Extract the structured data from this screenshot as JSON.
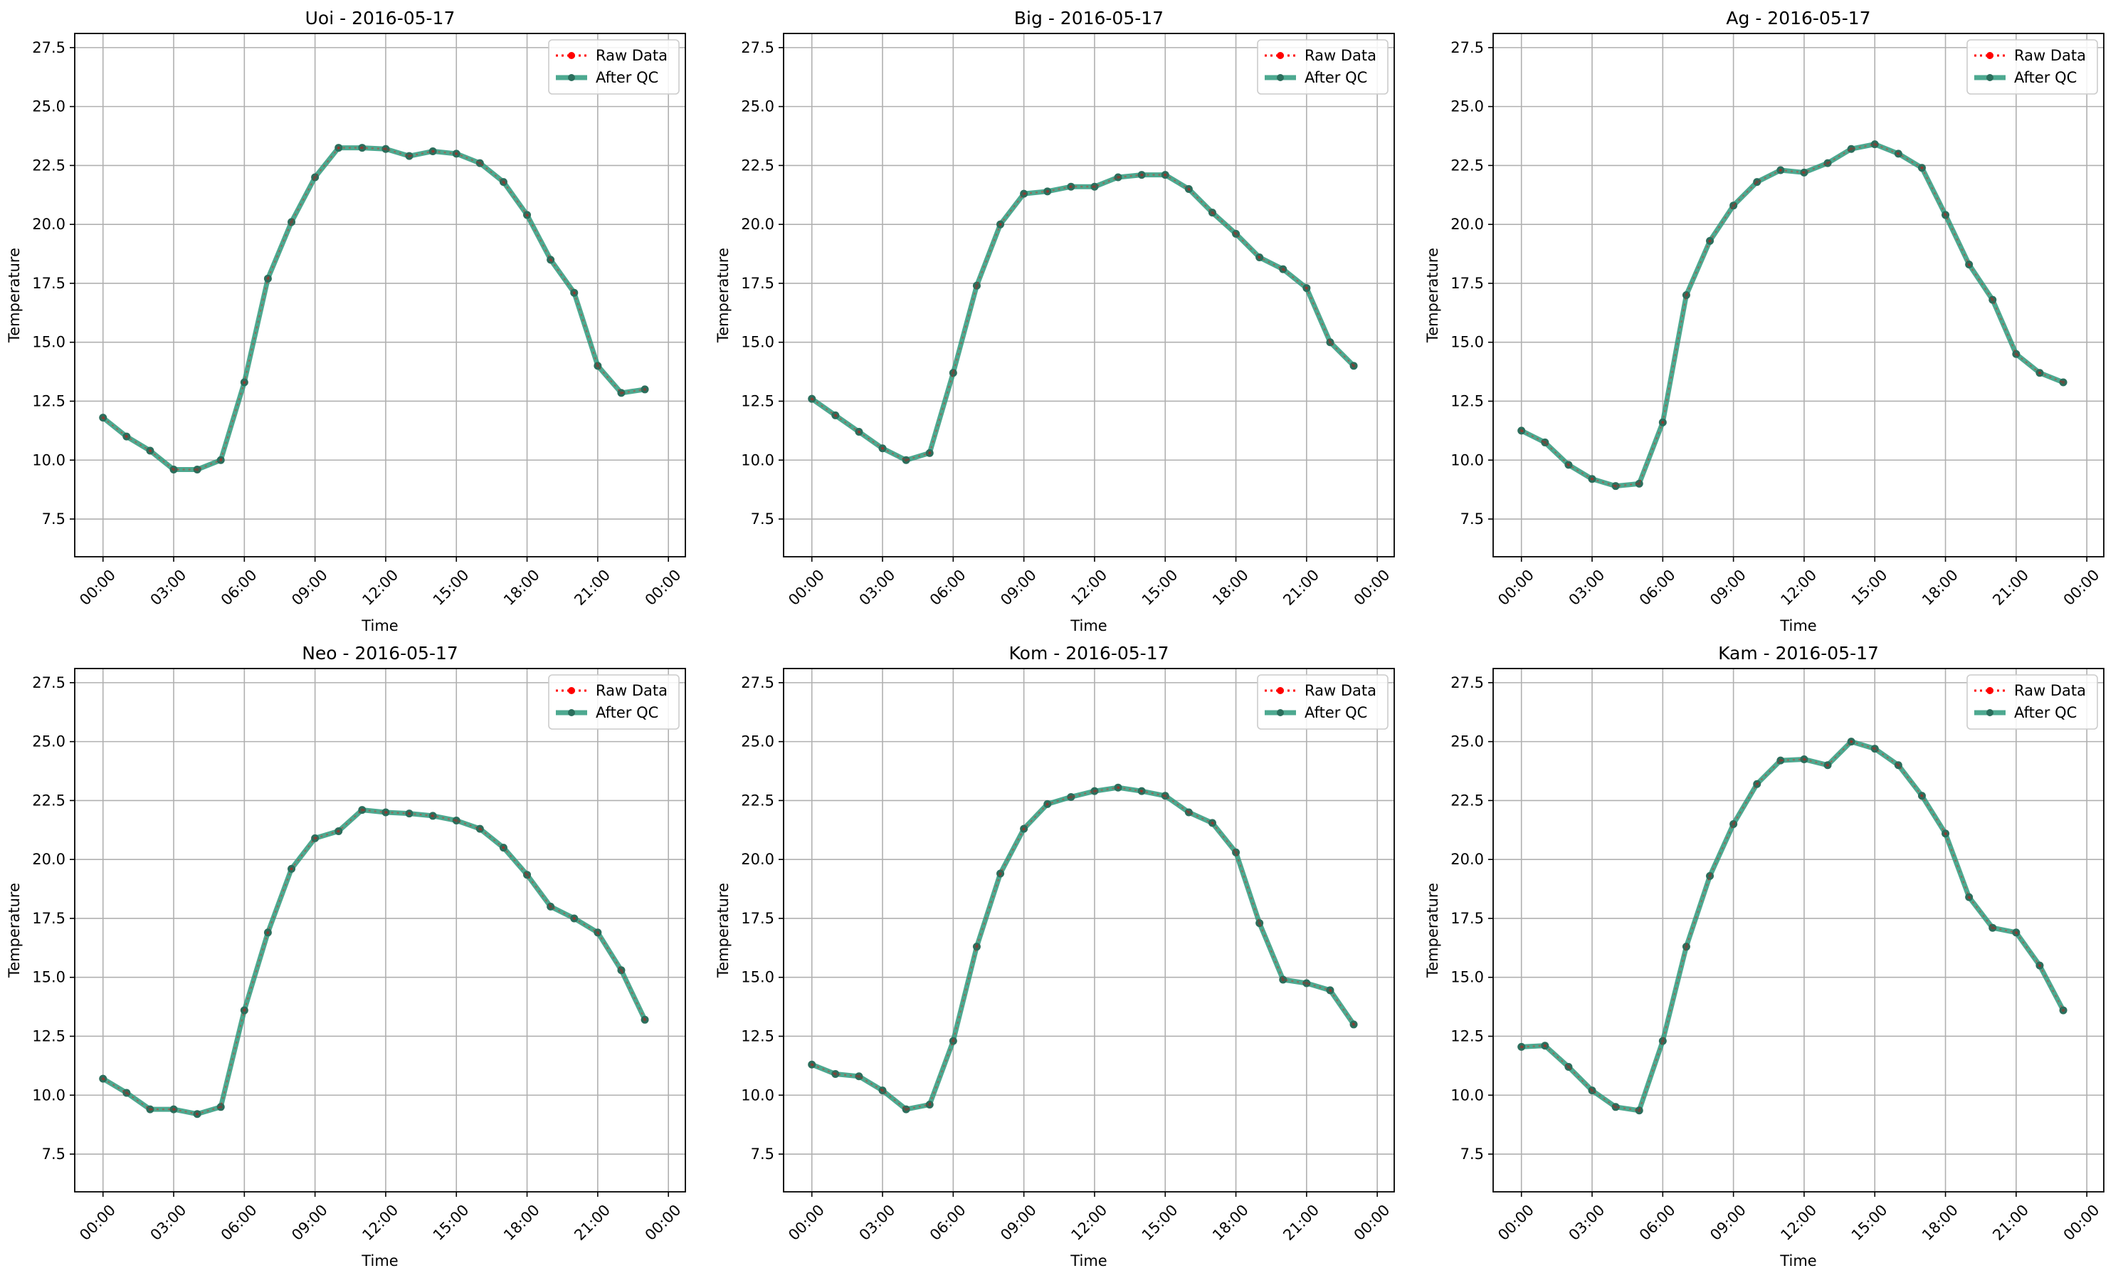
{
  "figure": {
    "legend_placement": "upper-right",
    "grid": true,
    "colors": {
      "raw_data": "#ff0000",
      "after_qc": "#2e9a7c",
      "after_qc_marker": "#2b6e5c",
      "grid": "#b0b0b0"
    }
  },
  "chart_data": [
    {
      "type": "line",
      "title": "Uoi - 2016-05-17",
      "xlabel": "Time",
      "ylabel": "Temperature",
      "x_ticks": [
        "00:00",
        "03:00",
        "06:00",
        "09:00",
        "12:00",
        "15:00",
        "18:00",
        "21:00",
        "00:00"
      ],
      "y_ticks": [
        "7.5",
        "10.0",
        "12.5",
        "15.0",
        "17.5",
        "20.0",
        "22.5",
        "25.0",
        "27.5"
      ],
      "xlim": [
        "00:00",
        "00:00 (+1 day)"
      ],
      "ylim": [
        5.9,
        28.1
      ],
      "x": [
        "00:00",
        "01:00",
        "02:00",
        "03:00",
        "04:00",
        "05:00",
        "06:00",
        "07:00",
        "08:00",
        "09:00",
        "10:00",
        "11:00",
        "12:00",
        "13:00",
        "14:00",
        "15:00",
        "16:00",
        "17:00",
        "18:00",
        "19:00",
        "20:00",
        "21:00",
        "22:00",
        "23:00"
      ],
      "series": [
        {
          "name": "Raw Data",
          "values": [
            11.8,
            11.0,
            10.4,
            9.6,
            9.6,
            10.0,
            13.3,
            17.7,
            20.1,
            22.0,
            23.25,
            23.25,
            23.2,
            22.9,
            23.1,
            23.0,
            22.6,
            21.8,
            20.4,
            18.5,
            17.1,
            14.0,
            12.85,
            13.0
          ]
        },
        {
          "name": "After QC",
          "values": [
            11.8,
            11.0,
            10.4,
            9.6,
            9.6,
            10.0,
            13.3,
            17.7,
            20.1,
            22.0,
            23.25,
            23.25,
            23.2,
            22.9,
            23.1,
            23.0,
            22.6,
            21.8,
            20.4,
            18.5,
            17.1,
            14.0,
            12.85,
            13.0
          ]
        }
      ]
    },
    {
      "type": "line",
      "title": "Big - 2016-05-17",
      "xlabel": "Time",
      "ylabel": "Temperature",
      "x_ticks": [
        "00:00",
        "03:00",
        "06:00",
        "09:00",
        "12:00",
        "15:00",
        "18:00",
        "21:00",
        "00:00"
      ],
      "y_ticks": [
        "7.5",
        "10.0",
        "12.5",
        "15.0",
        "17.5",
        "20.0",
        "22.5",
        "25.0",
        "27.5"
      ],
      "xlim": [
        "00:00",
        "00:00 (+1 day)"
      ],
      "ylim": [
        5.9,
        28.1
      ],
      "x": [
        "00:00",
        "01:00",
        "02:00",
        "03:00",
        "04:00",
        "05:00",
        "06:00",
        "07:00",
        "08:00",
        "09:00",
        "10:00",
        "11:00",
        "12:00",
        "13:00",
        "14:00",
        "15:00",
        "16:00",
        "17:00",
        "18:00",
        "19:00",
        "20:00",
        "21:00",
        "22:00",
        "23:00"
      ],
      "series": [
        {
          "name": "Raw Data",
          "values": [
            12.6,
            11.9,
            11.2,
            10.5,
            10.0,
            10.3,
            13.7,
            17.4,
            20.0,
            21.3,
            21.4,
            21.6,
            21.6,
            22.0,
            22.1,
            22.1,
            21.5,
            20.5,
            19.6,
            18.6,
            18.1,
            17.3,
            15.0,
            14.0
          ]
        },
        {
          "name": "After QC",
          "values": [
            12.6,
            11.9,
            11.2,
            10.5,
            10.0,
            10.3,
            13.7,
            17.4,
            20.0,
            21.3,
            21.4,
            21.6,
            21.6,
            22.0,
            22.1,
            22.1,
            21.5,
            20.5,
            19.6,
            18.6,
            18.1,
            17.3,
            15.0,
            14.0
          ]
        }
      ]
    },
    {
      "type": "line",
      "title": "Ag - 2016-05-17",
      "xlabel": "Time",
      "ylabel": "Temperature",
      "x_ticks": [
        "00:00",
        "03:00",
        "06:00",
        "09:00",
        "12:00",
        "15:00",
        "18:00",
        "21:00",
        "00:00"
      ],
      "y_ticks": [
        "7.5",
        "10.0",
        "12.5",
        "15.0",
        "17.5",
        "20.0",
        "22.5",
        "25.0",
        "27.5"
      ],
      "xlim": [
        "00:00",
        "00:00 (+1 day)"
      ],
      "ylim": [
        5.9,
        28.1
      ],
      "x": [
        "00:00",
        "01:00",
        "02:00",
        "03:00",
        "04:00",
        "05:00",
        "06:00",
        "07:00",
        "08:00",
        "09:00",
        "10:00",
        "11:00",
        "12:00",
        "13:00",
        "14:00",
        "15:00",
        "16:00",
        "17:00",
        "18:00",
        "19:00",
        "20:00",
        "21:00",
        "22:00",
        "23:00"
      ],
      "series": [
        {
          "name": "Raw Data",
          "values": [
            11.25,
            10.75,
            9.8,
            9.2,
            8.9,
            9.0,
            11.6,
            17.0,
            19.3,
            20.8,
            21.8,
            22.3,
            22.2,
            22.6,
            23.2,
            23.4,
            23.0,
            22.4,
            20.4,
            18.3,
            16.8,
            14.5,
            13.7,
            13.3
          ]
        },
        {
          "name": "After QC",
          "values": [
            11.25,
            10.75,
            9.8,
            9.2,
            8.9,
            9.0,
            11.6,
            17.0,
            19.3,
            20.8,
            21.8,
            22.3,
            22.2,
            22.6,
            23.2,
            23.4,
            23.0,
            22.4,
            20.4,
            18.3,
            16.8,
            14.5,
            13.7,
            13.3
          ]
        }
      ]
    },
    {
      "type": "line",
      "title": "Neo - 2016-05-17",
      "xlabel": "Time",
      "ylabel": "Temperature",
      "x_ticks": [
        "00:00",
        "03:00",
        "06:00",
        "09:00",
        "12:00",
        "15:00",
        "18:00",
        "21:00",
        "00:00"
      ],
      "y_ticks": [
        "7.5",
        "10.0",
        "12.5",
        "15.0",
        "17.5",
        "20.0",
        "22.5",
        "25.0",
        "27.5"
      ],
      "xlim": [
        "00:00",
        "00:00 (+1 day)"
      ],
      "ylim": [
        5.9,
        28.1
      ],
      "x": [
        "00:00",
        "01:00",
        "02:00",
        "03:00",
        "04:00",
        "05:00",
        "06:00",
        "07:00",
        "08:00",
        "09:00",
        "10:00",
        "11:00",
        "12:00",
        "13:00",
        "14:00",
        "15:00",
        "16:00",
        "17:00",
        "18:00",
        "19:00",
        "20:00",
        "21:00",
        "22:00",
        "23:00"
      ],
      "series": [
        {
          "name": "Raw Data",
          "values": [
            10.7,
            10.1,
            9.4,
            9.4,
            9.2,
            9.5,
            13.6,
            16.9,
            19.6,
            20.9,
            21.2,
            22.1,
            22.0,
            21.95,
            21.85,
            21.65,
            21.3,
            20.5,
            19.35,
            18.0,
            17.5,
            16.9,
            15.3,
            13.2
          ]
        },
        {
          "name": "After QC",
          "values": [
            10.7,
            10.1,
            9.4,
            9.4,
            9.2,
            9.5,
            13.6,
            16.9,
            19.6,
            20.9,
            21.2,
            22.1,
            22.0,
            21.95,
            21.85,
            21.65,
            21.3,
            20.5,
            19.35,
            18.0,
            17.5,
            16.9,
            15.3,
            13.2
          ]
        }
      ]
    },
    {
      "type": "line",
      "title": "Kom - 2016-05-17",
      "xlabel": "Time",
      "ylabel": "Temperature",
      "x_ticks": [
        "00:00",
        "03:00",
        "06:00",
        "09:00",
        "12:00",
        "15:00",
        "18:00",
        "21:00",
        "00:00"
      ],
      "y_ticks": [
        "7.5",
        "10.0",
        "12.5",
        "15.0",
        "17.5",
        "20.0",
        "22.5",
        "25.0",
        "27.5"
      ],
      "xlim": [
        "00:00",
        "00:00 (+1 day)"
      ],
      "ylim": [
        5.9,
        28.1
      ],
      "x": [
        "00:00",
        "01:00",
        "02:00",
        "03:00",
        "04:00",
        "05:00",
        "06:00",
        "07:00",
        "08:00",
        "09:00",
        "10:00",
        "11:00",
        "12:00",
        "13:00",
        "14:00",
        "15:00",
        "16:00",
        "17:00",
        "18:00",
        "19:00",
        "20:00",
        "21:00",
        "22:00",
        "23:00"
      ],
      "series": [
        {
          "name": "Raw Data",
          "values": [
            11.3,
            10.9,
            10.8,
            10.2,
            9.4,
            9.6,
            12.3,
            16.3,
            19.4,
            21.3,
            22.35,
            22.65,
            22.9,
            23.05,
            22.9,
            22.7,
            22.0,
            21.55,
            20.3,
            17.3,
            14.9,
            14.75,
            14.45,
            13.0
          ]
        },
        {
          "name": "After QC",
          "values": [
            11.3,
            10.9,
            10.8,
            10.2,
            9.4,
            9.6,
            12.3,
            16.3,
            19.4,
            21.3,
            22.35,
            22.65,
            22.9,
            23.05,
            22.9,
            22.7,
            22.0,
            21.55,
            20.3,
            17.3,
            14.9,
            14.75,
            14.45,
            13.0
          ]
        }
      ]
    },
    {
      "type": "line",
      "title": "Kam - 2016-05-17",
      "xlabel": "Time",
      "ylabel": "Temperature",
      "x_ticks": [
        "00:00",
        "03:00",
        "06:00",
        "09:00",
        "12:00",
        "15:00",
        "18:00",
        "21:00",
        "00:00"
      ],
      "y_ticks": [
        "7.5",
        "10.0",
        "12.5",
        "15.0",
        "17.5",
        "20.0",
        "22.5",
        "25.0",
        "27.5"
      ],
      "xlim": [
        "00:00",
        "00:00 (+1 day)"
      ],
      "ylim": [
        5.9,
        28.1
      ],
      "x": [
        "00:00",
        "01:00",
        "02:00",
        "03:00",
        "04:00",
        "05:00",
        "06:00",
        "07:00",
        "08:00",
        "09:00",
        "10:00",
        "11:00",
        "12:00",
        "13:00",
        "14:00",
        "15:00",
        "16:00",
        "17:00",
        "18:00",
        "19:00",
        "20:00",
        "21:00",
        "22:00",
        "23:00"
      ],
      "series": [
        {
          "name": "Raw Data",
          "values": [
            12.05,
            12.1,
            11.2,
            10.2,
            9.5,
            9.35,
            12.3,
            16.3,
            19.3,
            21.5,
            23.2,
            24.2,
            24.25,
            24.0,
            25.0,
            24.7,
            24.0,
            22.7,
            21.1,
            18.4,
            17.1,
            16.9,
            15.5,
            13.6
          ]
        },
        {
          "name": "After QC",
          "values": [
            12.05,
            12.1,
            11.2,
            10.2,
            9.5,
            9.35,
            12.3,
            16.3,
            19.3,
            21.5,
            23.2,
            24.2,
            24.25,
            24.0,
            25.0,
            24.7,
            24.0,
            22.7,
            21.1,
            18.4,
            17.1,
            16.9,
            15.5,
            13.6
          ]
        }
      ]
    }
  ]
}
